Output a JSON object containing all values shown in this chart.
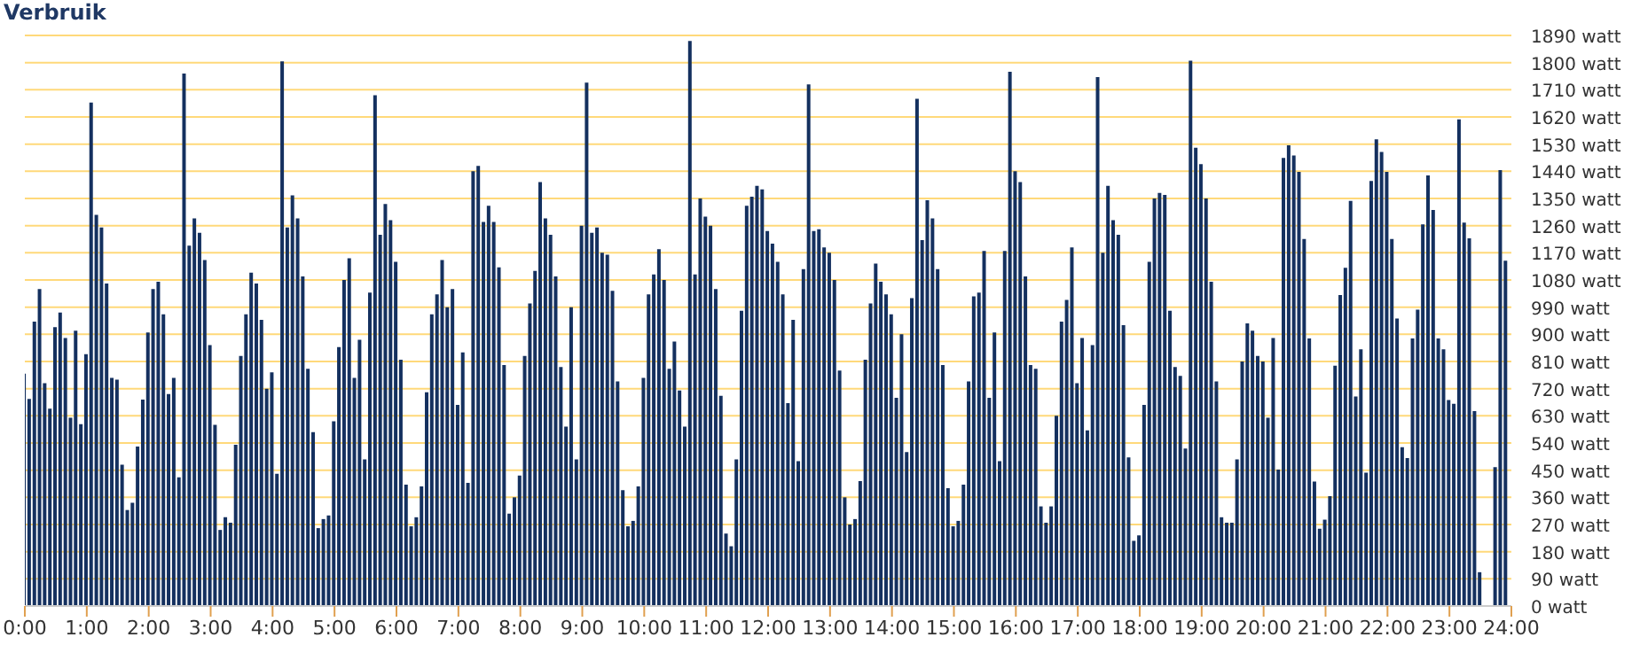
{
  "chart_data": {
    "type": "bar",
    "title": "Verbruik",
    "x": [
      0,
      0.083,
      0.167,
      0.25,
      0.333,
      0.417,
      0.5,
      0.583,
      0.667,
      0.75,
      0.833,
      0.917,
      1,
      1.083,
      1.167,
      1.25,
      1.333,
      1.417,
      1.5,
      1.583,
      1.667,
      1.75,
      1.833,
      1.917,
      2,
      2.083,
      2.167,
      2.25,
      2.333,
      2.417,
      2.5,
      2.583,
      2.667,
      2.75,
      2.833,
      2.917,
      3,
      3.083,
      3.167,
      3.25,
      3.333,
      3.417,
      3.5,
      3.583,
      3.667,
      3.75,
      3.833,
      3.917,
      4,
      4.083,
      4.167,
      4.25,
      4.333,
      4.417,
      4.5,
      4.583,
      4.667,
      4.75,
      4.833,
      4.917,
      5,
      5.083,
      5.167,
      5.25,
      5.333,
      5.417,
      5.5,
      5.583,
      5.667,
      5.75,
      5.833,
      5.917,
      6,
      6.083,
      6.167,
      6.25,
      6.333,
      6.417,
      6.5,
      6.583,
      6.667,
      6.75,
      6.833,
      6.917,
      7,
      7.083,
      7.167,
      7.25,
      7.333,
      7.417,
      7.5,
      7.583,
      7.667,
      7.75,
      7.833,
      7.917,
      8,
      8.083,
      8.167,
      8.25,
      8.333,
      8.417,
      8.5,
      8.583,
      8.667,
      8.75,
      8.833,
      8.917,
      9,
      9.083,
      9.167,
      9.25,
      9.333,
      9.417,
      9.5,
      9.583,
      9.667,
      9.75,
      9.833,
      9.917,
      10,
      10.083,
      10.167,
      10.25,
      10.333,
      10.417,
      10.5,
      10.583,
      10.667,
      10.75,
      10.833,
      10.917,
      11,
      11.083,
      11.167,
      11.25,
      11.333,
      11.417,
      11.5,
      11.583,
      11.667,
      11.75,
      11.833,
      11.917,
      12,
      12.083,
      12.167,
      12.25,
      12.333,
      12.417,
      12.5,
      12.583,
      12.667,
      12.75,
      12.833,
      12.917,
      13,
      13.083,
      13.167,
      13.25,
      13.333,
      13.417,
      13.5,
      13.583,
      13.667,
      13.75,
      13.833,
      13.917,
      14,
      14.083,
      14.167,
      14.25,
      14.333,
      14.417,
      14.5,
      14.583,
      14.667,
      14.75,
      14.833,
      14.917,
      15,
      15.083,
      15.167,
      15.25,
      15.333,
      15.417,
      15.5,
      15.583,
      15.667,
      15.75,
      15.833,
      15.917,
      16,
      16.083,
      16.167,
      16.25,
      16.333,
      16.417,
      16.5,
      16.583,
      16.667,
      16.75,
      16.833,
      16.917,
      17,
      17.083,
      17.167,
      17.25,
      17.333,
      17.417,
      17.5,
      17.583,
      17.667,
      17.75,
      17.833,
      17.917,
      18,
      18.083,
      18.167,
      18.25,
      18.333,
      18.417,
      18.5,
      18.583,
      18.667,
      18.75,
      18.833,
      18.917,
      19,
      19.083,
      19.167,
      19.25,
      19.333,
      19.417,
      19.5,
      19.583,
      19.667,
      19.75,
      19.833,
      19.917,
      20,
      20.083,
      20.167,
      20.25,
      20.333,
      20.417,
      20.5,
      20.583,
      20.667,
      20.75,
      20.833,
      20.917,
      21,
      21.083,
      21.167,
      21.25,
      21.333,
      21.417,
      21.5,
      21.583,
      21.667,
      21.75,
      21.833,
      21.917,
      22,
      22.083,
      22.167,
      22.25,
      22.333,
      22.417,
      22.5,
      22.583,
      22.667,
      22.75,
      22.833,
      22.917,
      23,
      23.083,
      23.167,
      23.25,
      23.333,
      23.417,
      23.5,
      23.583,
      23.667,
      23.75,
      23.833,
      23.917
    ],
    "values": [
      770,
      686,
      942,
      1050,
      738,
      654,
      924,
      972,
      888,
      624,
      912,
      602,
      834,
      1668,
      1296,
      1254,
      1068,
      756,
      750,
      468,
      318,
      342,
      528,
      684,
      906,
      1050,
      1074,
      966,
      702,
      756,
      426,
      1764,
      1194,
      1284,
      1236,
      1146,
      864,
      600,
      252,
      294,
      276,
      534,
      828,
      966,
      1104,
      1068,
      948,
      720,
      774,
      438,
      1804,
      1254,
      1360,
      1284,
      1092,
      786,
      576,
      258,
      288,
      300,
      612,
      858,
      1080,
      1152,
      756,
      882,
      486,
      1038,
      1692,
      1230,
      1332,
      1278,
      1140,
      816,
      402,
      264,
      294,
      396,
      708,
      966,
      1032,
      1146,
      990,
      1050,
      666,
      840,
      408,
      1440,
      1458,
      1272,
      1326,
      1272,
      1122,
      798,
      306,
      360,
      432,
      828,
      1002,
      1110,
      1404,
      1284,
      1230,
      1092,
      792,
      594,
      990,
      486,
      1260,
      1734,
      1236,
      1254,
      1170,
      1164,
      1044,
      744,
      384,
      264,
      282,
      396,
      756,
      1032,
      1098,
      1182,
      1080,
      786,
      876,
      714,
      594,
      1872,
      1098,
      1350,
      1290,
      1260,
      1050,
      696,
      240,
      198,
      486,
      978,
      1326,
      1356,
      1392,
      1380,
      1242,
      1200,
      1140,
      1032,
      672,
      948,
      480,
      1116,
      1728,
      1242,
      1248,
      1188,
      1170,
      1080,
      780,
      360,
      270,
      288,
      414,
      816,
      1002,
      1134,
      1074,
      1032,
      966,
      690,
      900,
      510,
      1020,
      1680,
      1212,
      1344,
      1284,
      1116,
      798,
      390,
      264,
      282,
      402,
      744,
      1026,
      1038,
      1176,
      690,
      906,
      480,
      1176,
      1770,
      1440,
      1404,
      1092,
      798,
      786,
      330,
      276,
      330,
      630,
      942,
      1014,
      1188,
      738,
      888,
      582,
      864,
      1752,
      1170,
      1392,
      1278,
      1230,
      930,
      492,
      216,
      234,
      666,
      1140,
      1350,
      1368,
      1362,
      978,
      792,
      762,
      522,
      1806,
      1518,
      1464,
      1350,
      1074,
      744,
      294,
      276,
      276,
      486,
      810,
      936,
      912,
      828,
      810,
      624,
      888,
      452,
      1484,
      1526,
      1492,
      1438,
      1216,
      886,
      412,
      256,
      286,
      364,
      796,
      1030,
      1120,
      1342,
      694,
      850,
      442,
      1408,
      1546,
      1504,
      1438,
      1216,
      952,
      526,
      490,
      886,
      982,
      1264,
      1426,
      1312,
      886,
      850,
      682,
      670,
      1612,
      1270,
      1218,
      646,
      112,
      null,
      0,
      460,
      1444,
      1144
    ],
    "color": "#14305f",
    "xlim": [
      0,
      24
    ],
    "xticks": [
      {
        "value": 0,
        "label": "0:00"
      },
      {
        "value": 1,
        "label": "1:00"
      },
      {
        "value": 2,
        "label": "2:00"
      },
      {
        "value": 3,
        "label": "3:00"
      },
      {
        "value": 4,
        "label": "4:00"
      },
      {
        "value": 5,
        "label": "5:00"
      },
      {
        "value": 6,
        "label": "6:00"
      },
      {
        "value": 7,
        "label": "7:00"
      },
      {
        "value": 8,
        "label": "8:00"
      },
      {
        "value": 9,
        "label": "9:00"
      },
      {
        "value": 10,
        "label": "10:00"
      },
      {
        "value": 11,
        "label": "11:00"
      },
      {
        "value": 12,
        "label": "12:00"
      },
      {
        "value": 13,
        "label": "13:00"
      },
      {
        "value": 14,
        "label": "14:00"
      },
      {
        "value": 15,
        "label": "15:00"
      },
      {
        "value": 16,
        "label": "16:00"
      },
      {
        "value": 17,
        "label": "17:00"
      },
      {
        "value": 18,
        "label": "18:00"
      },
      {
        "value": 19,
        "label": "19:00"
      },
      {
        "value": 20,
        "label": "20:00"
      },
      {
        "value": 21,
        "label": "21:00"
      },
      {
        "value": 22,
        "label": "22:00"
      },
      {
        "value": 23,
        "label": "23:00"
      },
      {
        "value": 24,
        "label": "24:00"
      }
    ],
    "ylim": [
      0,
      1890
    ],
    "yticks": [
      {
        "value": 0,
        "label": "0 watt"
      },
      {
        "value": 90,
        "label": "90 watt"
      },
      {
        "value": 180,
        "label": "180 watt"
      },
      {
        "value": 270,
        "label": "270 watt"
      },
      {
        "value": 360,
        "label": "360 watt"
      },
      {
        "value": 450,
        "label": "450 watt"
      },
      {
        "value": 540,
        "label": "540 watt"
      },
      {
        "value": 630,
        "label": "630 watt"
      },
      {
        "value": 720,
        "label": "720 watt"
      },
      {
        "value": 810,
        "label": "810 watt"
      },
      {
        "value": 900,
        "label": "900 watt"
      },
      {
        "value": 990,
        "label": "990 watt"
      },
      {
        "value": 1080,
        "label": "1080 watt"
      },
      {
        "value": 1170,
        "label": "1170 watt"
      },
      {
        "value": 1260,
        "label": "1260 watt"
      },
      {
        "value": 1350,
        "label": "1350 watt"
      },
      {
        "value": 1440,
        "label": "1440 watt"
      },
      {
        "value": 1530,
        "label": "1530 watt"
      },
      {
        "value": 1620,
        "label": "1620 watt"
      },
      {
        "value": 1710,
        "label": "1710 watt"
      },
      {
        "value": 1800,
        "label": "1800 watt"
      },
      {
        "value": 1890,
        "label": "1890 watt"
      }
    ],
    "grid": "y",
    "legend": false
  }
}
